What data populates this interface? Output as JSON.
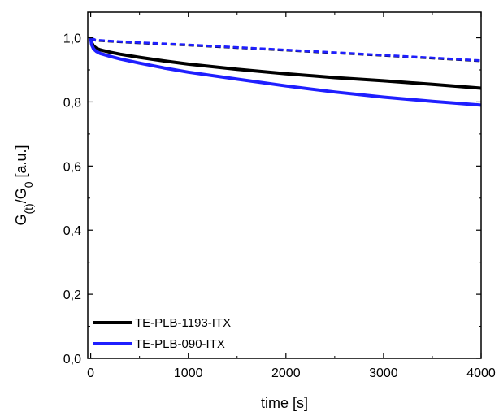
{
  "chart_data": {
    "type": "line",
    "title": "",
    "xlabel": "time [s]",
    "ylabel": {
      "main": "G",
      "sub1": "(t)",
      "mid": "/G",
      "sub2": "0",
      "unit": " [a.u.]"
    },
    "xlim": [
      -30,
      4000
    ],
    "ylim": [
      0,
      1.08
    ],
    "xticks": [
      0,
      1000,
      2000,
      3000,
      4000
    ],
    "xtick_labels": [
      "0",
      "1000",
      "2000",
      "3000",
      "4000"
    ],
    "yticks": [
      0.0,
      0.2,
      0.4,
      0.6,
      0.8,
      1.0
    ],
    "ytick_labels": [
      "0,0",
      "0,2",
      "0,4",
      "0,6",
      "0,8",
      "1,0"
    ],
    "grid": false,
    "legend": "bottom-left",
    "series": [
      {
        "name": "TE-PLB-1193-ITX",
        "color": "#000000",
        "style": "solid",
        "x": [
          0,
          10,
          30,
          60,
          100,
          200,
          300,
          500,
          750,
          1000,
          1500,
          2000,
          2500,
          3000,
          3500,
          4000
        ],
        "y": [
          1.0,
          0.985,
          0.974,
          0.967,
          0.962,
          0.955,
          0.949,
          0.939,
          0.928,
          0.918,
          0.902,
          0.888,
          0.876,
          0.866,
          0.855,
          0.843
        ]
      },
      {
        "name": "TE-PLB-090-ITX",
        "color": "#1f1fff",
        "style": "solid",
        "x": [
          0,
          10,
          30,
          60,
          100,
          200,
          300,
          500,
          750,
          1000,
          1500,
          2000,
          2500,
          3000,
          3500,
          4000
        ],
        "y": [
          1.0,
          0.978,
          0.965,
          0.957,
          0.951,
          0.942,
          0.934,
          0.921,
          0.906,
          0.893,
          0.871,
          0.85,
          0.831,
          0.815,
          0.802,
          0.79
        ]
      },
      {
        "color": "#000000",
        "style": "dashed",
        "x": [
          0,
          50,
          200,
          500,
          1000,
          2000,
          3000,
          4000
        ],
        "y": [
          1.0,
          0.992,
          0.989,
          0.984,
          0.977,
          0.961,
          0.945,
          0.928
        ]
      },
      {
        "color": "#1f1fff",
        "style": "dashed",
        "x": [
          0,
          50,
          200,
          500,
          1000,
          2000,
          3000,
          4000
        ],
        "y": [
          1.0,
          0.993,
          0.99,
          0.985,
          0.978,
          0.962,
          0.946,
          0.929
        ]
      }
    ]
  }
}
